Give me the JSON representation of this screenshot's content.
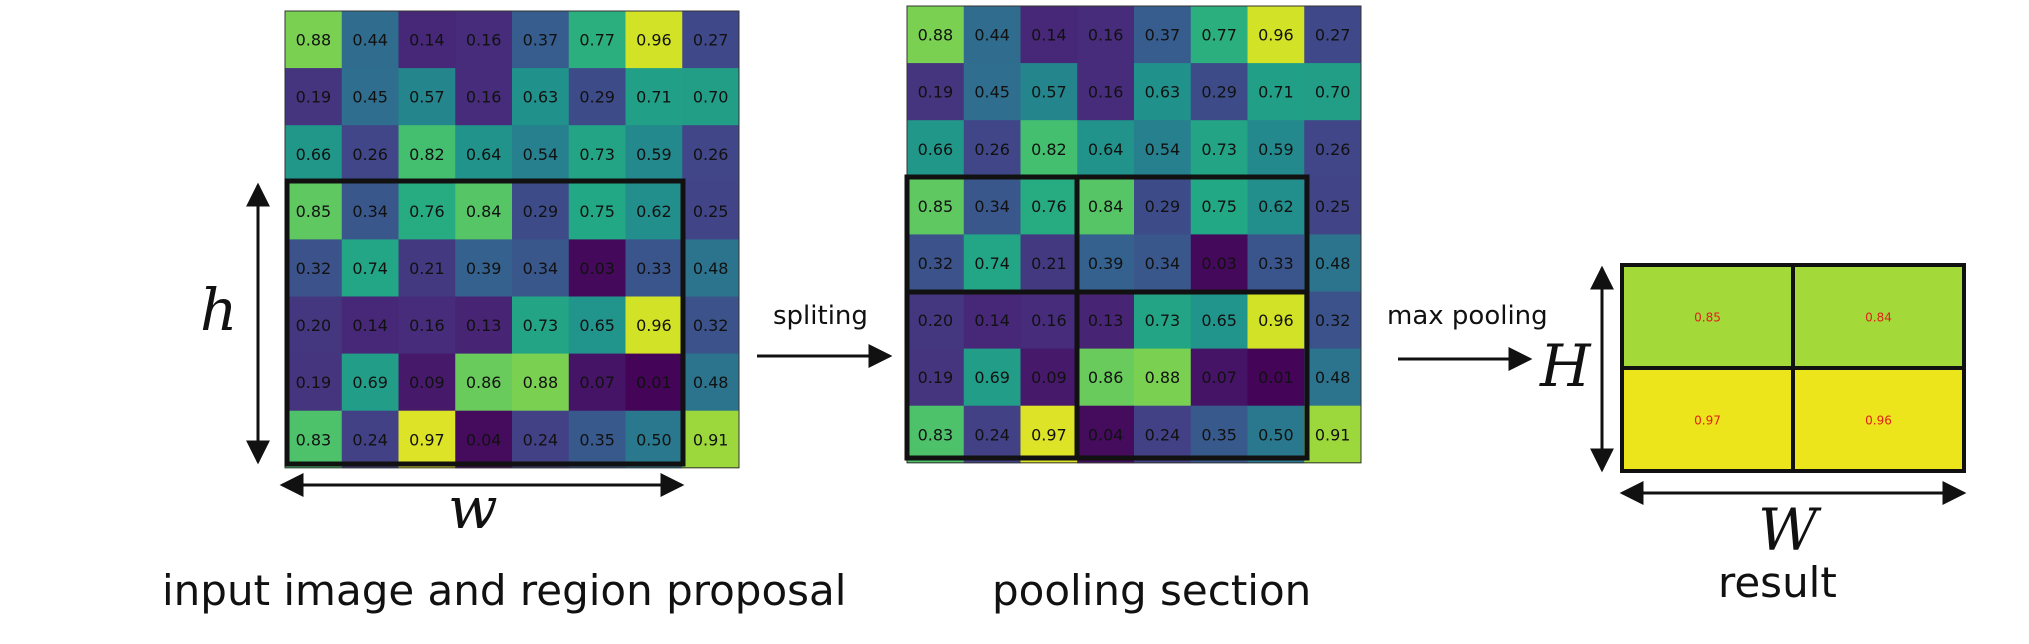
{
  "grid": [
    [
      0.88,
      0.44,
      0.14,
      0.16,
      0.37,
      0.77,
      0.96,
      0.27
    ],
    [
      0.19,
      0.45,
      0.57,
      0.16,
      0.63,
      0.29,
      0.71,
      0.7
    ],
    [
      0.66,
      0.26,
      0.82,
      0.64,
      0.54,
      0.73,
      0.59,
      0.26
    ],
    [
      0.85,
      0.34,
      0.76,
      0.84,
      0.29,
      0.75,
      0.62,
      0.25
    ],
    [
      0.32,
      0.74,
      0.21,
      0.39,
      0.34,
      0.03,
      0.33,
      0.48
    ],
    [
      0.2,
      0.14,
      0.16,
      0.13,
      0.73,
      0.65,
      0.96,
      0.32
    ],
    [
      0.19,
      0.69,
      0.09,
      0.86,
      0.88,
      0.07,
      0.01,
      0.48
    ],
    [
      0.83,
      0.24,
      0.97,
      0.04,
      0.24,
      0.35,
      0.5,
      0.91
    ]
  ],
  "result": [
    [
      0.85,
      0.84
    ],
    [
      0.97,
      0.96
    ]
  ],
  "colors": {
    "low": "#472d7b",
    "mid": "#21918c",
    "high": "#fde725",
    "result_text": "#e0201b"
  },
  "labels": {
    "input_caption": "input image and region proposal",
    "pooling_caption": "pooling section",
    "result_caption": "result",
    "arrow1": "spliting",
    "arrow2": "max pooling",
    "h": "h",
    "w": "w",
    "H": "H",
    "W": "W"
  }
}
